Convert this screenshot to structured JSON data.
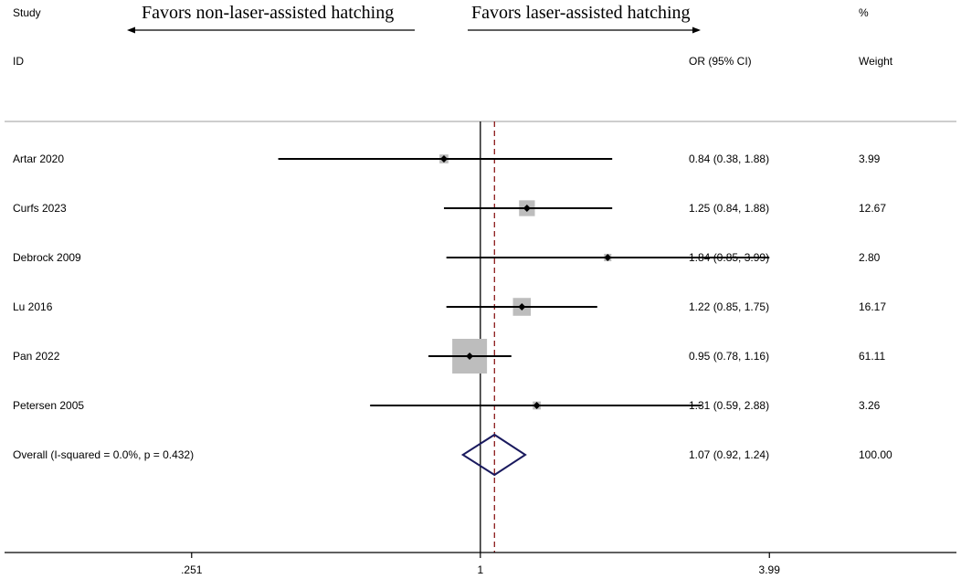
{
  "chart_data": {
    "type": "forest",
    "header": {
      "study": "Study",
      "id": "ID",
      "or_ci": "OR (95% CI)",
      "pct": "%",
      "weight": "Weight"
    },
    "favors_left": "Favors non-laser-assisted hatching",
    "favors_right": "Favors laser-assisted hatching",
    "studies": [
      {
        "name": "Artar 2020",
        "or": 0.84,
        "lo": 0.38,
        "hi": 1.88,
        "weight": 3.99,
        "or_text": "0.84 (0.38, 1.88)",
        "weight_text": "3.99"
      },
      {
        "name": "Curfs 2023",
        "or": 1.25,
        "lo": 0.84,
        "hi": 1.88,
        "weight": 12.67,
        "or_text": "1.25 (0.84, 1.88)",
        "weight_text": "12.67"
      },
      {
        "name": "Debrock 2009",
        "or": 1.84,
        "lo": 0.85,
        "hi": 3.99,
        "weight": 2.8,
        "or_text": "1.84 (0.85, 3.99)",
        "weight_text": "2.80"
      },
      {
        "name": "Lu 2016",
        "or": 1.22,
        "lo": 0.85,
        "hi": 1.75,
        "weight": 16.17,
        "or_text": "1.22 (0.85, 1.75)",
        "weight_text": "16.17"
      },
      {
        "name": "Pan 2022",
        "or": 0.95,
        "lo": 0.78,
        "hi": 1.16,
        "weight": 61.11,
        "or_text": "0.95 (0.78, 1.16)",
        "weight_text": "61.11"
      },
      {
        "name": "Petersen 2005",
        "or": 1.31,
        "lo": 0.59,
        "hi": 2.88,
        "weight": 3.26,
        "or_text": "1.31 (0.59, 2.88)",
        "weight_text": "3.26"
      }
    ],
    "overall": {
      "label": "Overall  (I-squared = 0.0%, p = 0.432)",
      "or": 1.07,
      "lo": 0.92,
      "hi": 1.24,
      "or_text": "1.07 (0.92, 1.24)",
      "weight_text": "100.00"
    },
    "x_scale": "log",
    "x_ticks": [
      0.251,
      1,
      3.99
    ],
    "x_tick_labels": [
      ".251",
      "1",
      "3.99"
    ],
    "xlim": [
      0.1025,
      9.77
    ],
    "null_line": 1,
    "colors": {
      "box": "#bdbdbd",
      "ci": "#000000",
      "overall_diamond": "#1a1a5e",
      "overall_line": "#8b1a1a",
      "separator": "#b0b0b0"
    }
  }
}
